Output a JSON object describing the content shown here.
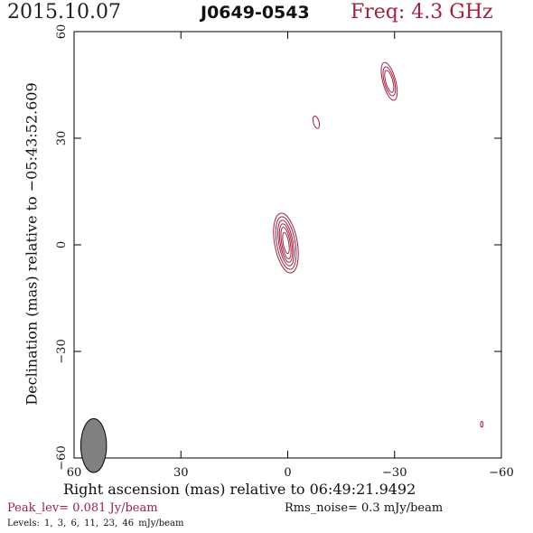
{
  "header": {
    "date": "2015.10.07",
    "source": "J0649-0543",
    "frequency": "Freq: 4.3 GHz"
  },
  "footer": {
    "peak": "Peak_lev=  0.081 Jy/beam",
    "rms": "Rms_noise=   0.3 mJy/beam",
    "levels": "Levels:  1,  3,  6,  11,  23,  46 mJy/beam"
  },
  "colors": {
    "contour": "#a3203f",
    "beam": "#808080",
    "frame": "#000000"
  },
  "chart_data": {
    "type": "contour",
    "xlabel": "Right ascension (mas) relative to 06:49:21.9492",
    "ylabel": "Declination (mas) relative to −05:43:52.609",
    "xlim": [
      60,
      -60
    ],
    "ylim": [
      -60,
      60
    ],
    "xticks": [
      60,
      30,
      0,
      -30,
      -60
    ],
    "yticks": [
      -60,
      -30,
      0,
      30,
      60
    ],
    "xtick_labels": [
      "60",
      "30",
      "0",
      "−30",
      "−60"
    ],
    "ytick_labels": [
      "−60",
      "−30",
      "0",
      "30",
      "60"
    ],
    "contour_levels_mJy": [
      1,
      3,
      6,
      11,
      23,
      46
    ],
    "components": [
      {
        "ra": 0.5,
        "dec": 0.5,
        "a": [
          0.8,
          1.2,
          1.6,
          2.0,
          2.6,
          3.2
        ],
        "b": [
          3.0,
          4.5,
          5.5,
          6.5,
          7.5,
          8.5
        ],
        "pa": -10
      },
      {
        "ra": -28.5,
        "dec": 46.0,
        "a": [
          1.0,
          1.4,
          1.8
        ],
        "b": [
          3.2,
          4.2,
          5.5
        ],
        "pa": -15
      },
      {
        "ra": -8.0,
        "dec": 34.5,
        "a": [
          0.8
        ],
        "b": [
          1.8
        ],
        "pa": -15
      },
      {
        "ra": -54.5,
        "dec": -50.5,
        "a": [
          0.35
        ],
        "b": [
          0.8
        ],
        "pa": 0
      }
    ],
    "beam": {
      "ra": 54.5,
      "dec": -56.5,
      "a": 1.0,
      "b": 2.1,
      "pa": 0
    }
  }
}
